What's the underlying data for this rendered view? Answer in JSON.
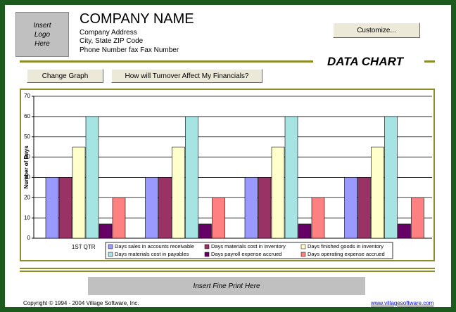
{
  "header": {
    "logo": "Insert Logo Here",
    "company_name": "COMPANY NAME",
    "address_lines": [
      "Company Address",
      "City, State  ZIP Code",
      "Phone Number fax Fax Number"
    ],
    "customize_button": "Customize...",
    "section_title": "DATA CHART"
  },
  "buttons": [
    "Change Graph",
    "How will Turnover Affect My Financials?"
  ],
  "chart_data": {
    "type": "bar",
    "ylabel": "Number of Days",
    "categories": [
      "1ST QTR",
      null,
      null,
      null
    ],
    "ylim": [
      0,
      70
    ],
    "yticks": [
      0,
      10,
      20,
      30,
      40,
      50,
      60,
      70
    ],
    "grid": true,
    "series": [
      {
        "name": "Days sales in accounts receivable",
        "color": "#9999ff",
        "values": [
          30,
          30,
          30,
          30
        ]
      },
      {
        "name": "Days materials cost in inventory",
        "color": "#993366",
        "values": [
          30,
          30,
          30,
          30
        ]
      },
      {
        "name": "Days finished goods in inventory",
        "color": "#ffffcc",
        "values": [
          45,
          45,
          45,
          45
        ]
      },
      {
        "name": "Days materials cost in payables",
        "color": "#a6e4e4",
        "values": [
          60,
          60,
          60,
          60
        ]
      },
      {
        "name": "Days payroll expense accrued",
        "color": "#660066",
        "values": [
          7,
          7,
          7,
          7
        ]
      },
      {
        "name": "Days operating expense accrued",
        "color": "#ff8080",
        "values": [
          20,
          20,
          20,
          20
        ]
      }
    ]
  },
  "footer": {
    "fine_print": "Insert Fine Print Here",
    "copyright": "Copyright © 1994 - 2004 Village Software, Inc.",
    "link": "www.villagesoftware.com"
  }
}
